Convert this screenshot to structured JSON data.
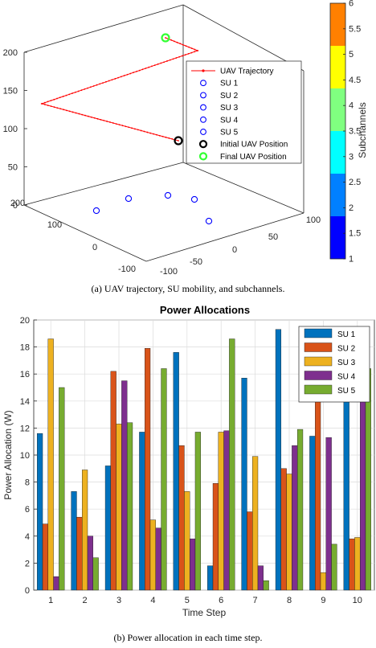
{
  "chart_data": [
    {
      "type": "scatter3d",
      "caption": "(a)  UAV trajectory, SU mobility, and subchannels.",
      "zlim": [
        0,
        200
      ],
      "z_ticks": [
        0,
        50,
        100,
        150,
        200
      ],
      "y_ticks": [
        200,
        100,
        0,
        -100
      ],
      "x_ticks": [
        -100,
        -50,
        0,
        50,
        100
      ],
      "legend": [
        "UAV Trajectory",
        "SU 1",
        "SU 2",
        "SU 3",
        "SU 4",
        "SU 5",
        "Initial UAV Position",
        "Final UAV Position"
      ],
      "colorbar": {
        "label": "Subchannels",
        "ticks": [
          "1",
          "1.5",
          "2",
          "2.5",
          "3",
          "3.5",
          "4",
          "4.5",
          "5",
          "5.5",
          "6"
        ],
        "colors": [
          "#0000ff",
          "#0080ff",
          "#00ffff",
          "#80ff80",
          "#ffff00",
          "#ff8000"
        ]
      },
      "colors": {
        "trajectory": "#ff0000",
        "su": "#0000ff",
        "initial": "#000000",
        "final": "#33ff33"
      }
    },
    {
      "type": "bar",
      "title": "Power Allocations",
      "caption": "(b)  Power allocation in each time step.",
      "xlabel": "Time Step",
      "ylabel": "Power Allocation (W)",
      "ylim": [
        0,
        20
      ],
      "y_ticks": [
        0,
        2,
        4,
        6,
        8,
        10,
        12,
        14,
        16,
        18,
        20
      ],
      "categories": [
        "1",
        "2",
        "3",
        "4",
        "5",
        "6",
        "7",
        "8",
        "9",
        "10"
      ],
      "legend_position": "top-right",
      "series": [
        {
          "name": "SU 1",
          "color": "#0072BD",
          "values": [
            11.6,
            7.3,
            9.2,
            11.7,
            17.6,
            1.8,
            15.7,
            19.3,
            11.4,
            15.8
          ]
        },
        {
          "name": "SU 2",
          "color": "#D95319",
          "values": [
            4.9,
            5.4,
            16.2,
            17.9,
            10.7,
            7.9,
            5.8,
            9.0,
            15.7,
            3.8
          ]
        },
        {
          "name": "SU 3",
          "color": "#EDB120",
          "values": [
            18.6,
            8.9,
            12.3,
            5.2,
            7.3,
            11.7,
            9.9,
            8.6,
            1.3,
            3.9
          ]
        },
        {
          "name": "SU 4",
          "color": "#7E2F8E",
          "values": [
            1.0,
            4.0,
            15.5,
            4.6,
            3.8,
            11.8,
            1.8,
            10.7,
            11.3,
            14.5
          ]
        },
        {
          "name": "SU 5",
          "color": "#77AC30",
          "values": [
            15.0,
            2.4,
            12.4,
            16.4,
            11.7,
            18.6,
            0.7,
            11.9,
            3.4,
            16.4
          ]
        }
      ]
    }
  ]
}
